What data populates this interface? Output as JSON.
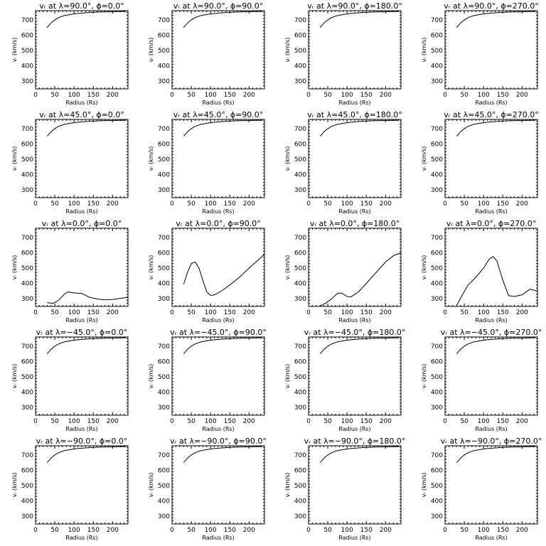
{
  "chart_data": [
    {
      "type": "line",
      "title": "vᵣ at λ=90.0°, ϕ=0.0°",
      "xlabel": "Radius (Rs)",
      "ylabel": "vᵣ (km/s)",
      "xlim": [
        0,
        240
      ],
      "ylim": [
        250,
        760
      ],
      "x_ticks": [
        0,
        50,
        100,
        150,
        200
      ],
      "y_ticks": [
        300,
        400,
        500,
        600,
        700
      ],
      "series": [
        {
          "x": [
            30,
            40,
            50,
            60,
            75,
            90,
            110,
            130,
            150,
            175,
            200,
            235
          ],
          "y": [
            650,
            680,
            700,
            715,
            728,
            735,
            742,
            746,
            750,
            752,
            753,
            755
          ]
        }
      ]
    },
    {
      "type": "line",
      "title": "vᵣ at λ=90.0°, ϕ=90.0°",
      "xlabel": "Radius (Rs)",
      "ylabel": "vᵣ (km/s)",
      "xlim": [
        0,
        240
      ],
      "ylim": [
        250,
        760
      ],
      "x_ticks": [
        0,
        50,
        100,
        150,
        200
      ],
      "y_ticks": [
        300,
        400,
        500,
        600,
        700
      ],
      "series": [
        {
          "x": [
            30,
            40,
            50,
            60,
            75,
            90,
            110,
            130,
            150,
            175,
            200,
            235
          ],
          "y": [
            650,
            680,
            700,
            715,
            728,
            735,
            742,
            746,
            750,
            752,
            753,
            755
          ]
        }
      ]
    },
    {
      "type": "line",
      "title": "vᵣ at λ=90.0°, ϕ=180.0°",
      "xlabel": "Radius (Rs)",
      "ylabel": "vᵣ (km/s)",
      "xlim": [
        0,
        240
      ],
      "ylim": [
        250,
        760
      ],
      "x_ticks": [
        0,
        50,
        100,
        150,
        200
      ],
      "y_ticks": [
        300,
        400,
        500,
        600,
        700
      ],
      "series": [
        {
          "x": [
            30,
            40,
            50,
            60,
            75,
            90,
            110,
            130,
            150,
            175,
            200,
            235
          ],
          "y": [
            650,
            680,
            700,
            715,
            728,
            735,
            742,
            746,
            750,
            752,
            753,
            755
          ]
        }
      ]
    },
    {
      "type": "line",
      "title": "vᵣ at λ=90.0°, ϕ=270.0°",
      "xlabel": "Radius (Rs)",
      "ylabel": "vᵣ (km/s)",
      "xlim": [
        0,
        240
      ],
      "ylim": [
        250,
        760
      ],
      "x_ticks": [
        0,
        50,
        100,
        150,
        200
      ],
      "y_ticks": [
        300,
        400,
        500,
        600,
        700
      ],
      "series": [
        {
          "x": [
            30,
            40,
            50,
            60,
            75,
            90,
            110,
            130,
            150,
            175,
            200,
            235
          ],
          "y": [
            650,
            680,
            700,
            715,
            728,
            735,
            742,
            746,
            750,
            752,
            753,
            755
          ]
        }
      ]
    },
    {
      "type": "line",
      "title": "vᵣ at λ=45.0°, ϕ=0.0°",
      "xlabel": "Radius (Rs)",
      "ylabel": "vᵣ (km/s)",
      "xlim": [
        0,
        240
      ],
      "ylim": [
        250,
        760
      ],
      "x_ticks": [
        0,
        50,
        100,
        150,
        200
      ],
      "y_ticks": [
        300,
        400,
        500,
        600,
        700
      ],
      "series": [
        {
          "x": [
            30,
            40,
            50,
            60,
            75,
            90,
            110,
            130,
            150,
            175,
            200,
            235
          ],
          "y": [
            650,
            680,
            700,
            715,
            728,
            735,
            742,
            746,
            750,
            752,
            753,
            755
          ]
        }
      ]
    },
    {
      "type": "line",
      "title": "vᵣ at λ=45.0°, ϕ=90.0°",
      "xlabel": "Radius (Rs)",
      "ylabel": "vᵣ (km/s)",
      "xlim": [
        0,
        240
      ],
      "ylim": [
        250,
        760
      ],
      "x_ticks": [
        0,
        50,
        100,
        150,
        200
      ],
      "y_ticks": [
        300,
        400,
        500,
        600,
        700
      ],
      "series": [
        {
          "x": [
            30,
            40,
            50,
            60,
            75,
            90,
            110,
            130,
            150,
            175,
            200,
            235
          ],
          "y": [
            650,
            680,
            700,
            715,
            728,
            735,
            742,
            746,
            750,
            752,
            753,
            755
          ]
        }
      ]
    },
    {
      "type": "line",
      "title": "vᵣ at λ=45.0°, ϕ=180.0°",
      "xlabel": "Radius (Rs)",
      "ylabel": "vᵣ (km/s)",
      "xlim": [
        0,
        240
      ],
      "ylim": [
        250,
        760
      ],
      "x_ticks": [
        0,
        50,
        100,
        150,
        200
      ],
      "y_ticks": [
        300,
        400,
        500,
        600,
        700
      ],
      "series": [
        {
          "x": [
            30,
            40,
            50,
            60,
            75,
            90,
            110,
            130,
            150,
            175,
            200,
            235
          ],
          "y": [
            650,
            680,
            700,
            715,
            728,
            735,
            742,
            746,
            750,
            752,
            753,
            755
          ]
        }
      ]
    },
    {
      "type": "line",
      "title": "vᵣ at λ=45.0°, ϕ=270.0°",
      "xlabel": "Radius (Rs)",
      "ylabel": "vᵣ (km/s)",
      "xlim": [
        0,
        240
      ],
      "ylim": [
        250,
        760
      ],
      "x_ticks": [
        0,
        50,
        100,
        150,
        200
      ],
      "y_ticks": [
        300,
        400,
        500,
        600,
        700
      ],
      "series": [
        {
          "x": [
            30,
            40,
            50,
            60,
            75,
            90,
            110,
            130,
            150,
            175,
            200,
            235
          ],
          "y": [
            650,
            680,
            700,
            715,
            728,
            735,
            742,
            746,
            750,
            752,
            753,
            755
          ]
        }
      ]
    },
    {
      "type": "line",
      "title": "vᵣ at λ=0.0°, ϕ=0.0°",
      "xlabel": "Radius (Rs)",
      "ylabel": "vᵣ (km/s)",
      "xlim": [
        0,
        240
      ],
      "ylim": [
        250,
        760
      ],
      "x_ticks": [
        0,
        50,
        100,
        150,
        200
      ],
      "y_ticks": [
        300,
        400,
        500,
        600,
        700
      ],
      "series": [
        {
          "x": [
            30,
            45,
            60,
            75,
            85,
            100,
            120,
            140,
            160,
            180,
            200,
            220,
            240
          ],
          "y": [
            275,
            270,
            290,
            330,
            345,
            338,
            335,
            310,
            298,
            293,
            295,
            302,
            310
          ]
        }
      ]
    },
    {
      "type": "line",
      "title": "vᵣ at λ=0.0°, ϕ=90.0°",
      "xlabel": "Radius (Rs)",
      "ylabel": "vᵣ (km/s)",
      "xlim": [
        0,
        240
      ],
      "ylim": [
        250,
        760
      ],
      "x_ticks": [
        0,
        50,
        100,
        150,
        200
      ],
      "y_ticks": [
        300,
        400,
        500,
        600,
        700
      ],
      "series": [
        {
          "x": [
            30,
            40,
            50,
            60,
            70,
            80,
            90,
            100,
            110,
            125,
            150,
            175,
            200,
            220,
            240
          ],
          "y": [
            395,
            470,
            530,
            540,
            500,
            420,
            345,
            322,
            325,
            345,
            390,
            440,
            500,
            545,
            590
          ]
        }
      ]
    },
    {
      "type": "line",
      "title": "vᵣ at λ=0.0°, ϕ=180.0°",
      "xlabel": "Radius (Rs)",
      "ylabel": "vᵣ (km/s)",
      "xlim": [
        0,
        240
      ],
      "ylim": [
        250,
        760
      ],
      "x_ticks": [
        0,
        50,
        100,
        150,
        200
      ],
      "y_ticks": [
        300,
        400,
        500,
        600,
        700
      ],
      "series": [
        {
          "x": [
            30,
            45,
            60,
            75,
            85,
            100,
            110,
            130,
            150,
            175,
            200,
            220,
            240
          ],
          "y": [
            255,
            272,
            300,
            335,
            338,
            315,
            312,
            345,
            400,
            470,
            540,
            580,
            600
          ]
        }
      ]
    },
    {
      "type": "line",
      "title": "vᵣ at λ=0.0°, ϕ=270.0°",
      "xlabel": "Radius (Rs)",
      "ylabel": "vᵣ (km/s)",
      "xlim": [
        0,
        240
      ],
      "ylim": [
        250,
        760
      ],
      "x_ticks": [
        0,
        50,
        100,
        150,
        200
      ],
      "y_ticks": [
        300,
        400,
        500,
        600,
        700
      ],
      "series": [
        {
          "x": [
            30,
            45,
            60,
            80,
            100,
            115,
            125,
            135,
            150,
            165,
            180,
            200,
            220,
            240
          ],
          "y": [
            255,
            325,
            390,
            440,
            500,
            560,
            575,
            545,
            420,
            320,
            315,
            325,
            362,
            350
          ]
        }
      ]
    },
    {
      "type": "line",
      "title": "vᵣ at λ=−45.0°, ϕ=0.0°",
      "xlabel": "Radius (Rs)",
      "ylabel": "vᵣ (km/s)",
      "xlim": [
        0,
        240
      ],
      "ylim": [
        250,
        760
      ],
      "x_ticks": [
        0,
        50,
        100,
        150,
        200
      ],
      "y_ticks": [
        300,
        400,
        500,
        600,
        700
      ],
      "series": [
        {
          "x": [
            30,
            40,
            50,
            60,
            75,
            90,
            110,
            130,
            150,
            175,
            200,
            235
          ],
          "y": [
            650,
            680,
            700,
            715,
            728,
            735,
            742,
            746,
            750,
            752,
            753,
            755
          ]
        }
      ]
    },
    {
      "type": "line",
      "title": "vᵣ at λ=−45.0°, ϕ=90.0°",
      "xlabel": "Radius (Rs)",
      "ylabel": "vᵣ (km/s)",
      "xlim": [
        0,
        240
      ],
      "ylim": [
        250,
        760
      ],
      "x_ticks": [
        0,
        50,
        100,
        150,
        200
      ],
      "y_ticks": [
        300,
        400,
        500,
        600,
        700
      ],
      "series": [
        {
          "x": [
            30,
            40,
            50,
            60,
            75,
            90,
            110,
            130,
            150,
            175,
            200,
            235
          ],
          "y": [
            650,
            680,
            700,
            715,
            728,
            735,
            742,
            746,
            750,
            752,
            753,
            755
          ]
        }
      ]
    },
    {
      "type": "line",
      "title": "vᵣ at λ=−45.0°, ϕ=180.0°",
      "xlabel": "Radius (Rs)",
      "ylabel": "vᵣ (km/s)",
      "xlim": [
        0,
        240
      ],
      "ylim": [
        250,
        760
      ],
      "x_ticks": [
        0,
        50,
        100,
        150,
        200
      ],
      "y_ticks": [
        300,
        400,
        500,
        600,
        700
      ],
      "series": [
        {
          "x": [
            30,
            40,
            50,
            60,
            75,
            90,
            110,
            130,
            150,
            175,
            200,
            235
          ],
          "y": [
            650,
            680,
            700,
            715,
            728,
            735,
            742,
            746,
            750,
            752,
            753,
            755
          ]
        }
      ]
    },
    {
      "type": "line",
      "title": "vᵣ at λ=−45.0°, ϕ=270.0°",
      "xlabel": "Radius (Rs)",
      "ylabel": "vᵣ (km/s)",
      "xlim": [
        0,
        240
      ],
      "ylim": [
        250,
        760
      ],
      "x_ticks": [
        0,
        50,
        100,
        150,
        200
      ],
      "y_ticks": [
        300,
        400,
        500,
        600,
        700
      ],
      "series": [
        {
          "x": [
            30,
            40,
            50,
            60,
            75,
            90,
            110,
            130,
            150,
            175,
            200,
            235
          ],
          "y": [
            650,
            680,
            700,
            715,
            728,
            735,
            742,
            746,
            750,
            752,
            753,
            755
          ]
        }
      ]
    },
    {
      "type": "line",
      "title": "vᵣ at λ=−90.0°, ϕ=0.0°",
      "xlabel": "Radius (Rs)",
      "ylabel": "vᵣ (km/s)",
      "xlim": [
        0,
        240
      ],
      "ylim": [
        250,
        760
      ],
      "x_ticks": [
        0,
        50,
        100,
        150,
        200
      ],
      "y_ticks": [
        300,
        400,
        500,
        600,
        700
      ],
      "series": [
        {
          "x": [
            30,
            40,
            50,
            60,
            75,
            90,
            110,
            130,
            150,
            175,
            200,
            235
          ],
          "y": [
            650,
            680,
            700,
            715,
            728,
            735,
            742,
            746,
            750,
            752,
            753,
            755
          ]
        }
      ]
    },
    {
      "type": "line",
      "title": "vᵣ at λ=−90.0°, ϕ=90.0°",
      "xlabel": "Radius (Rs)",
      "ylabel": "vᵣ (km/s)",
      "xlim": [
        0,
        240
      ],
      "ylim": [
        250,
        760
      ],
      "x_ticks": [
        0,
        50,
        100,
        150,
        200
      ],
      "y_ticks": [
        300,
        400,
        500,
        600,
        700
      ],
      "series": [
        {
          "x": [
            30,
            40,
            50,
            60,
            75,
            90,
            110,
            130,
            150,
            175,
            200,
            235
          ],
          "y": [
            650,
            680,
            700,
            715,
            728,
            735,
            742,
            746,
            750,
            752,
            753,
            755
          ]
        }
      ]
    },
    {
      "type": "line",
      "title": "vᵣ at λ=−90.0°, ϕ=180.0°",
      "xlabel": "Radius (Rs)",
      "ylabel": "vᵣ (km/s)",
      "xlim": [
        0,
        240
      ],
      "ylim": [
        250,
        760
      ],
      "x_ticks": [
        0,
        50,
        100,
        150,
        200
      ],
      "y_ticks": [
        300,
        400,
        500,
        600,
        700
      ],
      "series": [
        {
          "x": [
            30,
            40,
            50,
            60,
            75,
            90,
            110,
            130,
            150,
            175,
            200,
            235
          ],
          "y": [
            650,
            680,
            700,
            715,
            728,
            735,
            742,
            746,
            750,
            752,
            753,
            755
          ]
        }
      ]
    },
    {
      "type": "line",
      "title": "vᵣ at λ=−90.0°, ϕ=270.0°",
      "xlabel": "Radius (Rs)",
      "ylabel": "vᵣ (km/s)",
      "xlim": [
        0,
        240
      ],
      "ylim": [
        250,
        760
      ],
      "x_ticks": [
        0,
        50,
        100,
        150,
        200
      ],
      "y_ticks": [
        300,
        400,
        500,
        600,
        700
      ],
      "series": [
        {
          "x": [
            30,
            40,
            50,
            60,
            75,
            90,
            110,
            130,
            150,
            175,
            200,
            235
          ],
          "y": [
            650,
            680,
            700,
            715,
            728,
            735,
            742,
            746,
            750,
            752,
            753,
            755
          ]
        }
      ]
    }
  ]
}
